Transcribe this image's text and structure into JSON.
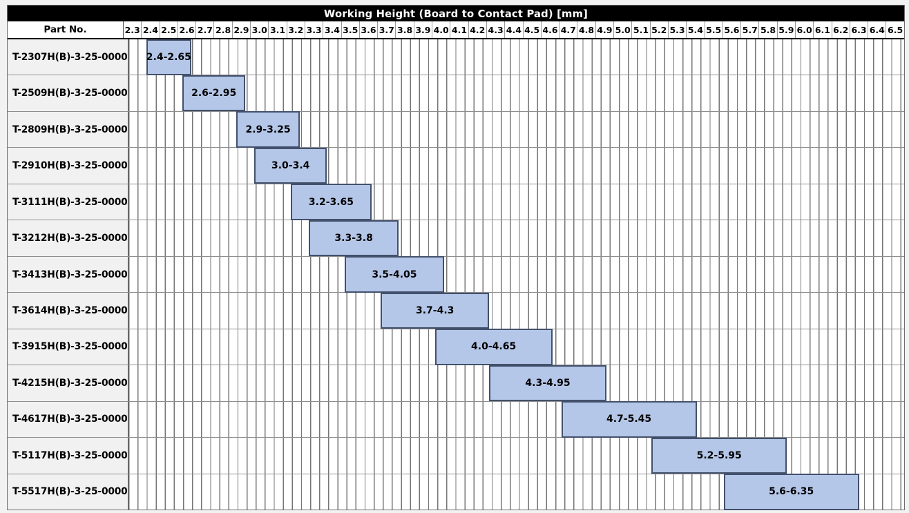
{
  "chart_data": {
    "type": "bar",
    "subtype": "horizontal-range-gantt",
    "title": "Working Height (Board to Contact Pad) [mm]",
    "part_header": "Part No.",
    "x_axis": {
      "min": 2.3,
      "max": 6.6,
      "tick_step": 0.1,
      "subgrid_step": 0.05,
      "ticks": [
        "2.3",
        "2.4",
        "2.5",
        "2.6",
        "2.7",
        "2.8",
        "2.9",
        "3.0",
        "3.1",
        "3.2",
        "3.3",
        "3.4",
        "3.5",
        "3.6",
        "3.7",
        "3.8",
        "3.9",
        "4.0",
        "4.1",
        "4.2",
        "4.3",
        "4.4",
        "4.5",
        "4.6",
        "4.7",
        "4.8",
        "4.9",
        "5.0",
        "5.1",
        "5.2",
        "5.3",
        "5.4",
        "5.5",
        "5.6",
        "5.7",
        "5.8",
        "5.9",
        "6.0",
        "6.1",
        "6.2",
        "6.3",
        "6.4",
        "6.5"
      ]
    },
    "rows": [
      {
        "part_no": "T-2307H(B)-3-25-0000",
        "start": 2.4,
        "end": 2.65,
        "range_label": "2.4-2.65"
      },
      {
        "part_no": "T-2509H(B)-3-25-0000",
        "start": 2.6,
        "end": 2.95,
        "range_label": "2.6-2.95"
      },
      {
        "part_no": "T-2809H(B)-3-25-0000",
        "start": 2.9,
        "end": 3.25,
        "range_label": "2.9-3.25"
      },
      {
        "part_no": "T-2910H(B)-3-25-0000",
        "start": 3.0,
        "end": 3.4,
        "range_label": "3.0-3.4"
      },
      {
        "part_no": "T-3111H(B)-3-25-0000",
        "start": 3.2,
        "end": 3.65,
        "range_label": "3.2-3.65"
      },
      {
        "part_no": "T-3212H(B)-3-25-0000",
        "start": 3.3,
        "end": 3.8,
        "range_label": "3.3-3.8"
      },
      {
        "part_no": "T-3413H(B)-3-25-0000",
        "start": 3.5,
        "end": 4.05,
        "range_label": "3.5-4.05"
      },
      {
        "part_no": "T-3614H(B)-3-25-0000",
        "start": 3.7,
        "end": 4.3,
        "range_label": "3.7-4.3"
      },
      {
        "part_no": "T-3915H(B)-3-25-0000",
        "start": 4.0,
        "end": 4.65,
        "range_label": "4.0-4.65"
      },
      {
        "part_no": "T-4215H(B)-3-25-0000",
        "start": 4.3,
        "end": 4.95,
        "range_label": "4.3-4.95"
      },
      {
        "part_no": "T-4617H(B)-3-25-0000",
        "start": 4.7,
        "end": 5.45,
        "range_label": "4.7-5.45"
      },
      {
        "part_no": "T-5117H(B)-3-25-0000",
        "start": 5.2,
        "end": 5.95,
        "range_label": "5.2-5.95"
      },
      {
        "part_no": "T-5517H(B)-3-25-0000",
        "start": 5.6,
        "end": 6.35,
        "range_label": "5.6-6.35"
      }
    ]
  },
  "colors": {
    "bar_fill": "#b5c7e8",
    "bar_border": "#42506b",
    "title_bg": "#000000",
    "title_text": "#ffffff",
    "part_cell_bg": "#f1f1f1",
    "grid_line": "#767676",
    "row_separator": "#8e8e8e"
  }
}
